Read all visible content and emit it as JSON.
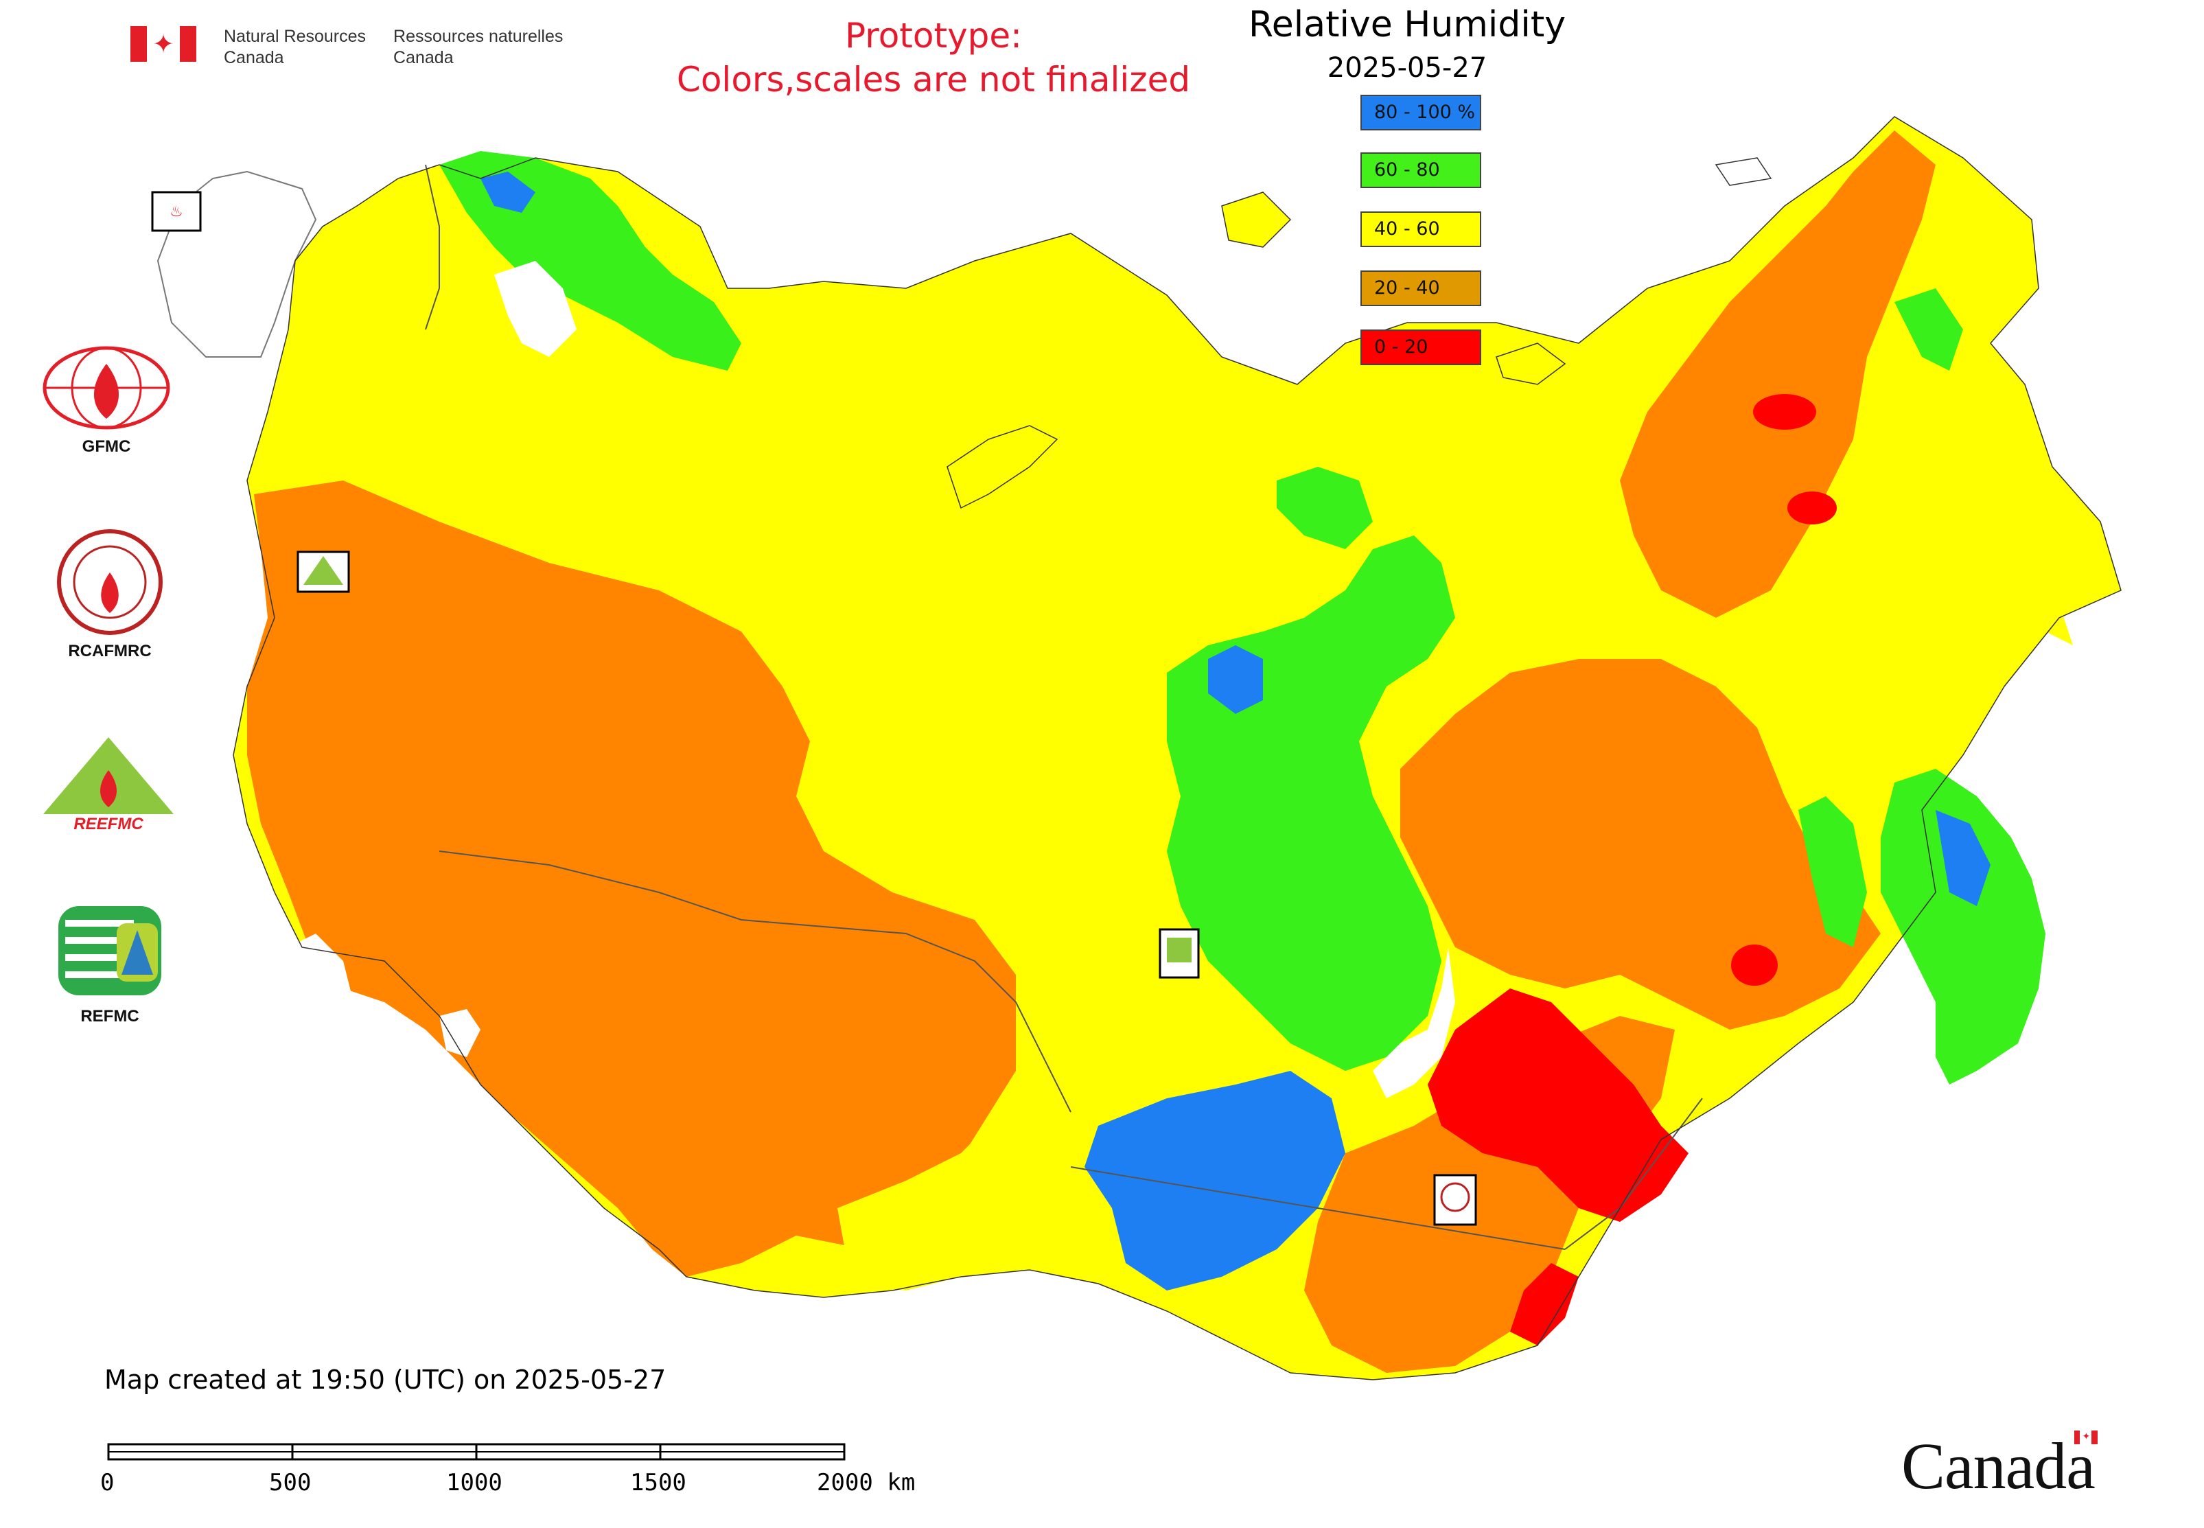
{
  "header": {
    "agency_en": "Natural Resources\nCanada",
    "agency_fr": "Ressources naturelles\nCanada",
    "prototype_line1": "Prototype:",
    "prototype_line2": "Colors,scales are not finalized"
  },
  "map": {
    "title": "Relative Humidity",
    "date": "2025-05-27",
    "created": "Map created at 19:50 (UTC) on 2025-05-27"
  },
  "legend": [
    {
      "label": "80 - 100 %",
      "color": "#1f7ff0"
    },
    {
      "label": "60 - 80",
      "color": "#44f01a"
    },
    {
      "label": "40 - 60",
      "color": "#ffff00"
    },
    {
      "label": "20 - 40",
      "color": "#e09a00"
    },
    {
      "label": "0 - 20",
      "color": "#ff0000"
    }
  ],
  "colors": {
    "orange_fill": "#ff8400",
    "yellow_fill": "#ffff00",
    "green_fill": "#39f01a",
    "blue_fill": "#1d7ff2",
    "red_fill": "#ff0000"
  },
  "side_logos": {
    "gfmc": "GFMC",
    "rcafmrc": "RCAFMRC",
    "reefmc_text": "REEFMC",
    "refmc": "REFMC"
  },
  "scale_bar": {
    "labels": [
      "0",
      "500",
      "1000",
      "1500",
      "2000 km"
    ]
  },
  "footer": {
    "wordmark": "Canada"
  }
}
